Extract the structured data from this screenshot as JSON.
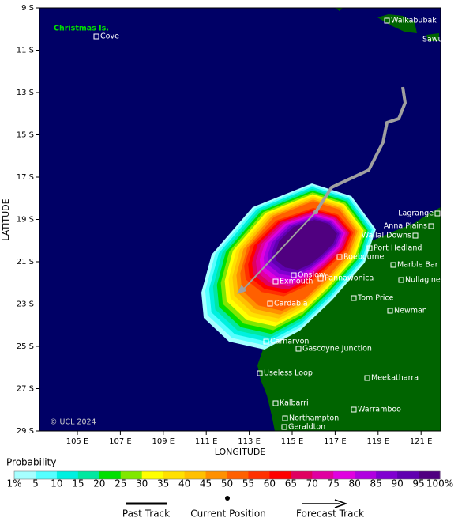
{
  "map": {
    "x_axis_label": "LONGITUDE",
    "y_axis_label": "LATITUDE",
    "lat_ticks": [
      {
        "value": 9,
        "label": "9 S"
      },
      {
        "value": 11,
        "label": "11 S"
      },
      {
        "value": 13,
        "label": "13 S"
      },
      {
        "value": 15,
        "label": "15 S"
      },
      {
        "value": 17,
        "label": "17 S"
      },
      {
        "value": 19,
        "label": "19 S"
      },
      {
        "value": 21,
        "label": "21 S"
      },
      {
        "value": 23,
        "label": "23 S"
      },
      {
        "value": 25,
        "label": "25 S"
      },
      {
        "value": 27,
        "label": "27 S"
      },
      {
        "value": 29,
        "label": "29 S"
      }
    ],
    "lon_ticks": [
      {
        "value": 105,
        "label": "105 E"
      },
      {
        "value": 107,
        "label": "107 E"
      },
      {
        "value": 109,
        "label": "109 E"
      },
      {
        "value": 111,
        "label": "111 E"
      },
      {
        "value": 113,
        "label": "113 E"
      },
      {
        "value": 115,
        "label": "115 E"
      },
      {
        "value": 117,
        "label": "117 E"
      },
      {
        "value": 119,
        "label": "119 E"
      },
      {
        "value": 121,
        "label": "121 E"
      }
    ],
    "island_label": "Christmas Is.",
    "places": [
      "Walkabubak",
      "Sawu",
      "Cove",
      "Lagrange",
      "Anna Plains",
      "Wallal Downs",
      "Port Hedland",
      "Roebourne",
      "Marble Bar",
      "Onslow",
      "Pannawonica",
      "Exmouth",
      "Nullagine",
      "Tom Price",
      "Cardabia",
      "Newman",
      "Carnarvon",
      "Gascoyne Junction",
      "Useless Loop",
      "Meekatharra",
      "Kalbarri",
      "Warramboo",
      "Northampton",
      "Geraldton"
    ],
    "copyright": "© UCL 2024"
  },
  "legend": {
    "title": "Probability",
    "labels": [
      "1%",
      "5",
      "10",
      "15",
      "20",
      "25",
      "30",
      "35",
      "40",
      "45",
      "50",
      "55",
      "60",
      "65",
      "70",
      "75",
      "80",
      "85",
      "90",
      "95",
      "100%"
    ],
    "colors": [
      "#a6ffff",
      "#55ffff",
      "#00f0e0",
      "#00e8a0",
      "#00e000",
      "#80e800",
      "#ffff00",
      "#ffe000",
      "#ffc000",
      "#ff9000",
      "#ff6000",
      "#ff3000",
      "#ff0000",
      "#e00060",
      "#e000a0",
      "#e000e0",
      "#b000e0",
      "#8000d0",
      "#6000b0",
      "#500080"
    ],
    "items": [
      "Past Track",
      "Current Position",
      "Forecast Track"
    ]
  }
}
